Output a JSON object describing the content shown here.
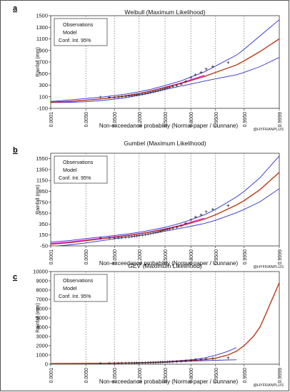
{
  "credit": "@HYFRANPLUS",
  "colors": {
    "observations": "#222222",
    "model": "#b83a1a",
    "confidence_interval": "#2f2fd0",
    "highlight": "#ff00ff",
    "grid": "#666666"
  },
  "chart_data": [
    {
      "panel_label": "a",
      "type": "line",
      "title": "Weibull (Maximum Likelihood)",
      "xlabel": "Non-exceedance probability (Normal paper / Cunnane)",
      "ylabel": "Rainfall (mm)",
      "x_scale": "normal-probability",
      "x_ticks": [
        "0.0001",
        "0.0050",
        "0.0500",
        "0.2000",
        "0.5000",
        "0.8000",
        "0.9500",
        "0.9950",
        "0.9999"
      ],
      "y_ticks": [
        -100,
        100,
        300,
        500,
        700,
        900,
        1100,
        1300,
        1500
      ],
      "ylim": [
        -100,
        1500
      ],
      "grid": "vertical dotted",
      "legend": {
        "position": "top-left",
        "entries": [
          "Observations",
          "Model",
          "Conf. Int. 95%"
        ]
      },
      "series": [
        {
          "role": "observations",
          "marker": "plus",
          "x": [
            0.018,
            0.035,
            0.05,
            0.065,
            0.08,
            0.1,
            0.12,
            0.14,
            0.16,
            0.18,
            0.2,
            0.23,
            0.26,
            0.29,
            0.32,
            0.35,
            0.38,
            0.41,
            0.44,
            0.47,
            0.5,
            0.53,
            0.56,
            0.6,
            0.65,
            0.7,
            0.75,
            0.8,
            0.84,
            0.88,
            0.91,
            0.94,
            0.98
          ],
          "y": [
            95,
            92,
            93,
            97,
            102,
            108,
            113,
            120,
            127,
            132,
            138,
            146,
            155,
            165,
            175,
            186,
            195,
            205,
            218,
            230,
            240,
            252,
            262,
            275,
            292,
            318,
            365,
            430,
            480,
            520,
            580,
            620,
            690
          ]
        },
        {
          "role": "model",
          "x": [
            0.0001,
            0.001,
            0.005,
            0.02,
            0.05,
            0.1,
            0.2,
            0.3,
            0.5,
            0.7,
            0.8,
            0.9,
            0.95,
            0.99,
            0.995,
            0.999,
            0.9999
          ],
          "y": [
            5,
            20,
            40,
            65,
            90,
            115,
            155,
            190,
            260,
            330,
            380,
            450,
            520,
            650,
            720,
            880,
            1100
          ]
        },
        {
          "role": "ci_upper",
          "x": [
            0.0001,
            0.001,
            0.005,
            0.02,
            0.05,
            0.1,
            0.2,
            0.3,
            0.5,
            0.7,
            0.8,
            0.9,
            0.95,
            0.99,
            0.995,
            0.999,
            0.9999
          ],
          "y": [
            20,
            45,
            70,
            95,
            120,
            145,
            185,
            220,
            295,
            375,
            440,
            530,
            630,
            820,
            920,
            1150,
            1430
          ]
        },
        {
          "role": "ci_lower",
          "x": [
            0.0001,
            0.001,
            0.005,
            0.02,
            0.05,
            0.1,
            0.2,
            0.3,
            0.5,
            0.7,
            0.8,
            0.9,
            0.95,
            0.99,
            0.995,
            0.999,
            0.9999
          ],
          "y": [
            0,
            5,
            15,
            35,
            60,
            85,
            125,
            160,
            225,
            285,
            320,
            370,
            410,
            480,
            520,
            620,
            780
          ]
        },
        {
          "role": "highlight",
          "x": [
            0.0001,
            0.001,
            0.005,
            0.02,
            0.05,
            0.1,
            0.2,
            0.3,
            0.5,
            0.7,
            0.8,
            0.9
          ],
          "y": [
            10,
            22,
            40,
            65,
            92,
            118,
            158,
            193,
            265,
            340,
            395,
            470
          ]
        }
      ]
    },
    {
      "panel_label": "b",
      "type": "line",
      "title": "Gumbel (Maximum Likelihood)",
      "xlabel": "Non-exceedance probability (Normal paper / Cunnane)",
      "ylabel": "Rainfall (mm)",
      "x_scale": "normal-probability",
      "x_ticks": [
        "0.0001",
        "0.0050",
        "0.0500",
        "0.2000",
        "0.5000",
        "0.8000",
        "0.9500",
        "0.9950",
        "0.9999"
      ],
      "y_ticks": [
        -50,
        150,
        350,
        550,
        750,
        950,
        1150,
        1350,
        1550
      ],
      "ylim": [
        -50,
        1650
      ],
      "grid": "vertical dotted",
      "legend": {
        "position": "top-left",
        "entries": [
          "Observations",
          "Model",
          "Conf. Int. 95%"
        ]
      },
      "series": [
        {
          "role": "observations",
          "marker": "plus",
          "x": [
            0.018,
            0.035,
            0.05,
            0.065,
            0.08,
            0.1,
            0.12,
            0.14,
            0.16,
            0.18,
            0.2,
            0.23,
            0.26,
            0.29,
            0.32,
            0.35,
            0.38,
            0.41,
            0.44,
            0.47,
            0.5,
            0.53,
            0.56,
            0.6,
            0.65,
            0.7,
            0.75,
            0.8,
            0.84,
            0.88,
            0.91,
            0.94,
            0.98
          ],
          "y": [
            95,
            92,
            93,
            97,
            102,
            108,
            113,
            120,
            127,
            132,
            138,
            146,
            155,
            165,
            175,
            186,
            195,
            205,
            218,
            230,
            240,
            252,
            262,
            275,
            292,
            318,
            365,
            430,
            480,
            520,
            580,
            620,
            690
          ]
        },
        {
          "role": "model",
          "x": [
            0.0001,
            0.001,
            0.005,
            0.02,
            0.05,
            0.1,
            0.2,
            0.3,
            0.5,
            0.7,
            0.8,
            0.9,
            0.95,
            0.99,
            0.995,
            0.999,
            0.9999
          ],
          "y": [
            -20,
            10,
            45,
            80,
            110,
            135,
            170,
            200,
            255,
            320,
            370,
            440,
            520,
            700,
            780,
            980,
            1300
          ]
        },
        {
          "role": "ci_upper",
          "x": [
            0.0001,
            0.001,
            0.005,
            0.02,
            0.05,
            0.1,
            0.2,
            0.3,
            0.5,
            0.7,
            0.8,
            0.9,
            0.95,
            0.99,
            0.995,
            0.999,
            0.9999
          ],
          "y": [
            20,
            50,
            85,
            115,
            140,
            165,
            200,
            232,
            290,
            370,
            430,
            520,
            620,
            850,
            950,
            1200,
            1600
          ]
        },
        {
          "role": "ci_lower",
          "x": [
            0.0001,
            0.001,
            0.005,
            0.02,
            0.05,
            0.1,
            0.2,
            0.3,
            0.5,
            0.7,
            0.8,
            0.9,
            0.95,
            0.99,
            0.995,
            0.999,
            0.9999
          ],
          "y": [
            -60,
            -30,
            5,
            45,
            80,
            105,
            140,
            170,
            220,
            275,
            310,
            360,
            420,
            560,
            620,
            760,
            1000
          ]
        },
        {
          "role": "highlight",
          "x": [
            0.0001,
            0.001,
            0.005,
            0.02,
            0.05,
            0.1,
            0.2,
            0.3,
            0.5,
            0.7,
            0.8,
            0.9
          ],
          "y": [
            -5,
            25,
            58,
            90,
            118,
            142,
            175,
            205,
            262,
            330,
            385,
            460
          ]
        }
      ]
    },
    {
      "panel_label": "c",
      "type": "line",
      "title": "GEV (Maximum Likelihood)",
      "xlabel": "Non-exceedance probability (Normal paper / Cunnane)",
      "ylabel": "Rainfall (mm)",
      "x_scale": "normal-probability",
      "x_ticks": [
        "0.0001",
        "0.0050",
        "0.0500",
        "0.2000",
        "0.5000",
        "0.8000",
        "0.9500",
        "0.9950",
        "0.9999"
      ],
      "y_ticks": [
        0,
        1000,
        2000,
        3000,
        4000,
        5000,
        6000,
        7000,
        8000,
        9000,
        10000
      ],
      "ylim": [
        0,
        10000
      ],
      "grid": "vertical dotted",
      "legend": {
        "position": "top-left",
        "entries": [
          "Observations",
          "Model",
          "Conf. Int. 95%"
        ]
      },
      "series": [
        {
          "role": "observations",
          "marker": "plus",
          "x": [
            0.018,
            0.035,
            0.05,
            0.065,
            0.08,
            0.1,
            0.12,
            0.14,
            0.16,
            0.18,
            0.2,
            0.23,
            0.26,
            0.29,
            0.32,
            0.35,
            0.38,
            0.41,
            0.44,
            0.47,
            0.5,
            0.53,
            0.56,
            0.6,
            0.65,
            0.7,
            0.75,
            0.8,
            0.84,
            0.88,
            0.91,
            0.94,
            0.98
          ],
          "y": [
            95,
            92,
            93,
            97,
            102,
            108,
            113,
            120,
            127,
            132,
            138,
            146,
            155,
            165,
            175,
            186,
            195,
            205,
            218,
            230,
            240,
            252,
            262,
            275,
            292,
            318,
            365,
            430,
            480,
            520,
            580,
            620,
            690
          ]
        },
        {
          "role": "model",
          "x": [
            0.0001,
            0.005,
            0.05,
            0.2,
            0.5,
            0.8,
            0.9,
            0.95,
            0.98,
            0.99,
            0.995,
            0.998,
            0.999,
            0.9995,
            0.9999
          ],
          "y": [
            70,
            85,
            110,
            150,
            240,
            390,
            500,
            650,
            1000,
            1400,
            2000,
            3000,
            4000,
            5500,
            8800
          ]
        },
        {
          "role": "ci_upper",
          "x": [
            0.0001,
            0.005,
            0.05,
            0.2,
            0.5,
            0.8,
            0.9,
            0.95,
            0.98,
            0.99
          ],
          "y": [
            80,
            100,
            130,
            175,
            280,
            480,
            680,
            950,
            1400,
            1800
          ]
        },
        {
          "role": "ci_lower",
          "x": [
            0.0001,
            0.005,
            0.05,
            0.2,
            0.5,
            0.8,
            0.9,
            0.95,
            0.98,
            0.99
          ],
          "y": [
            60,
            70,
            90,
            125,
            200,
            320,
            380,
            420,
            460,
            480
          ]
        }
      ]
    }
  ]
}
